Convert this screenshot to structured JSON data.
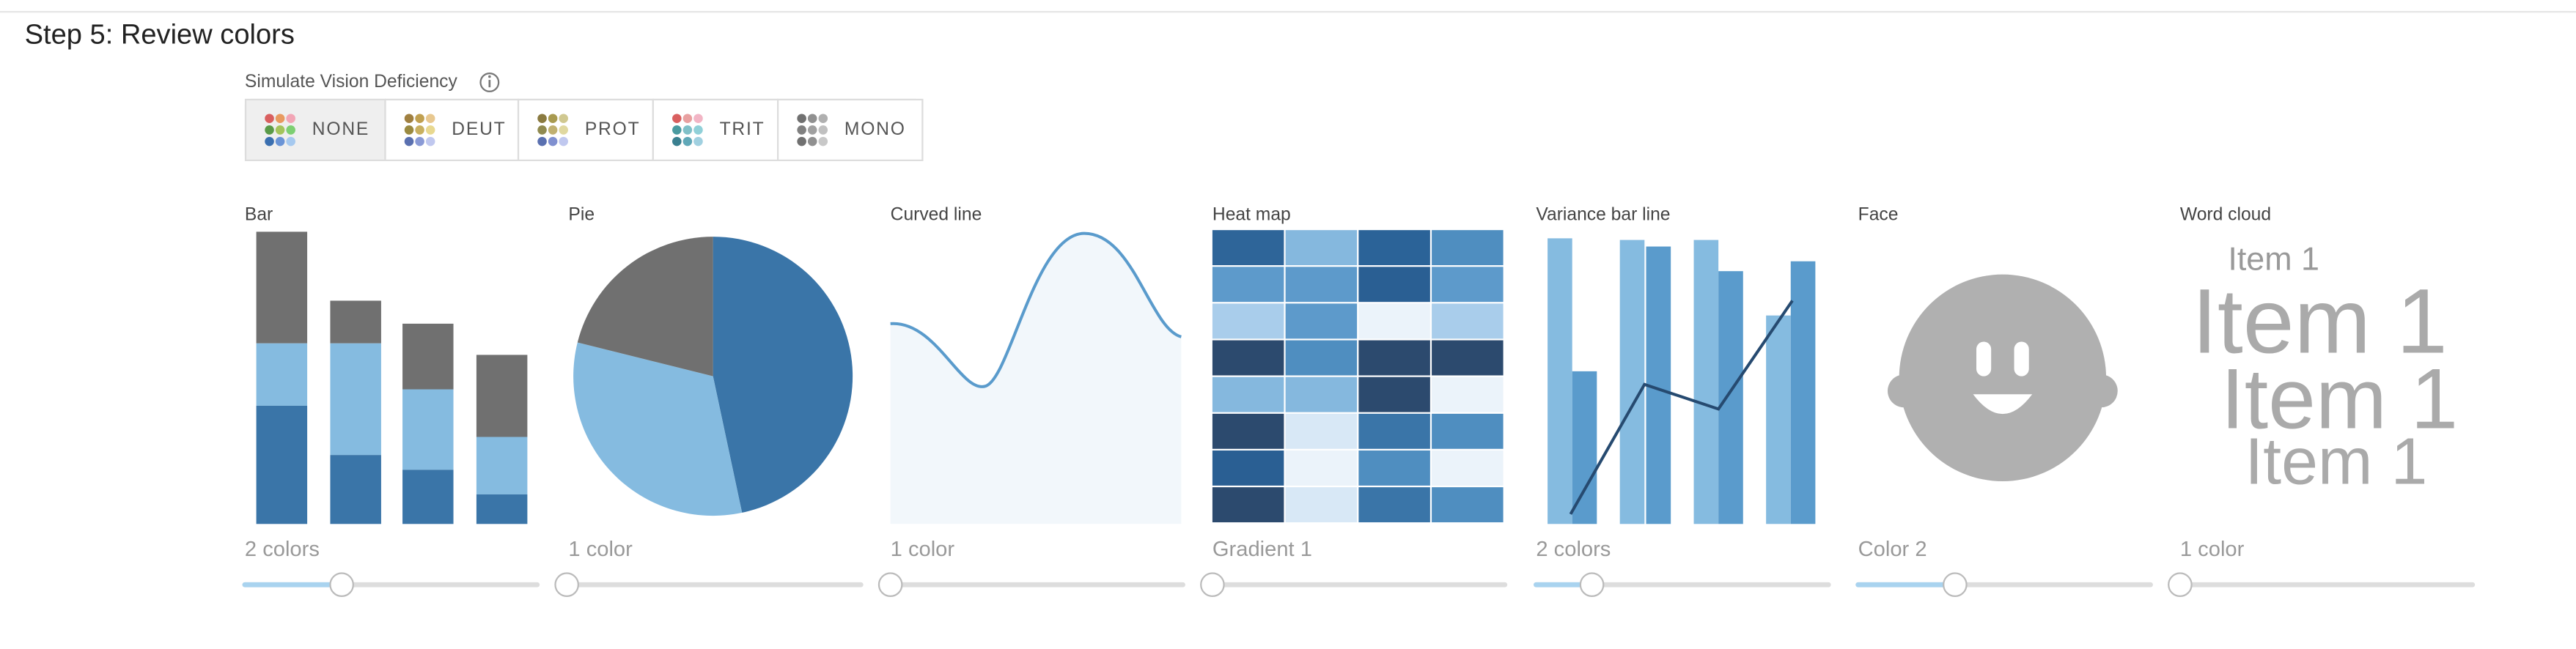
{
  "header": {
    "title": "Step 5: Review colors"
  },
  "simulate": {
    "label": "Simulate Vision Deficiency",
    "options": [
      "NONE",
      "DEUT",
      "PROT",
      "TRIT",
      "MONO"
    ]
  },
  "panels": [
    {
      "title": "Bar",
      "caption": "2 colors"
    },
    {
      "title": "Pie",
      "caption": "1 color"
    },
    {
      "title": "Curved line",
      "caption": "1 color"
    },
    {
      "title": "Heat map",
      "caption": "Gradient 1"
    },
    {
      "title": "Variance bar line",
      "caption": "2 colors"
    },
    {
      "title": "Face",
      "caption": "Color 2"
    },
    {
      "title": "Word cloud",
      "caption": "1 color"
    }
  ],
  "word_cloud": {
    "words": [
      "Item 1",
      "Item 1",
      "Item 1",
      "Item 1"
    ]
  }
}
